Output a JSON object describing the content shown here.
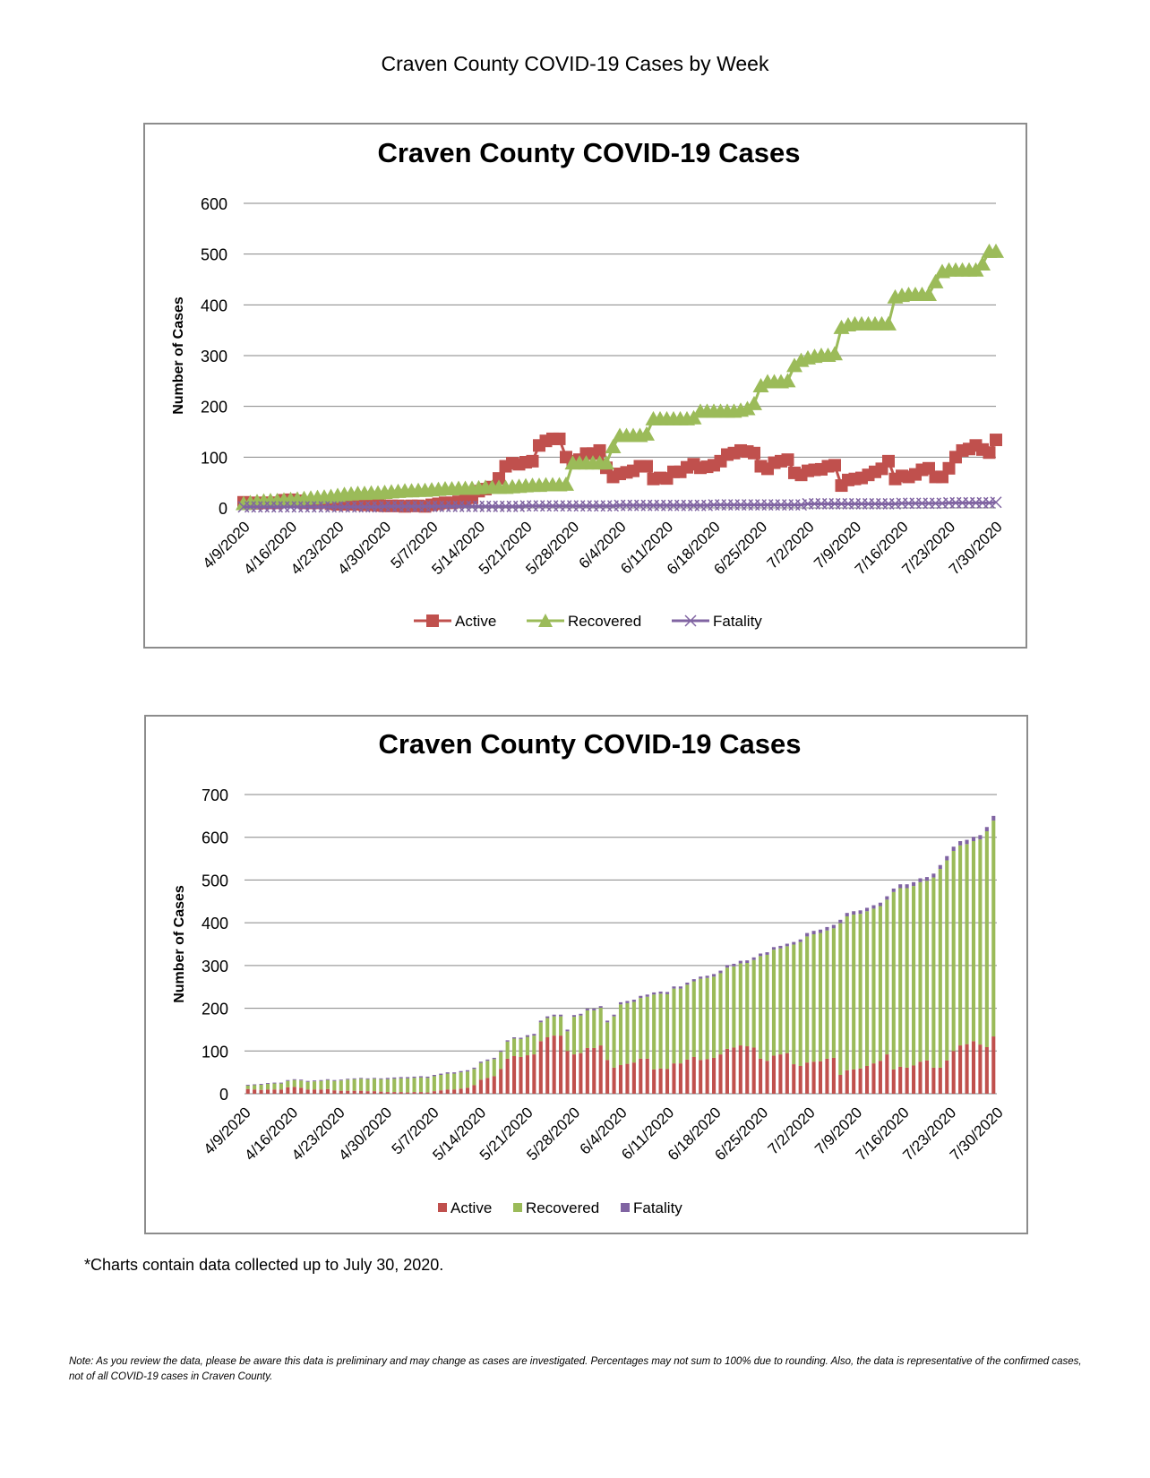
{
  "page_title": "Craven County COVID-19 Cases by Week",
  "footnote": "*Charts contain data collected up to July 30, 2020.",
  "note": "Note: As you review the data, please be aware this data is preliminary and may change as cases are investigated. Percentages may not sum to 100% due to rounding. Also, the data is representative of the confirmed cases, not of all COVID-19 cases in Craven County.",
  "colors": {
    "active": "#C0504D",
    "recovered": "#9BBB59",
    "fatality": "#8064A2"
  },
  "chart_data": [
    {
      "type": "line",
      "title": "Craven County COVID-19 Cases",
      "xlabel": "",
      "ylabel": "Number of Cases",
      "ylim": [
        0,
        600
      ],
      "yticks": [
        "0",
        "100",
        "200",
        "300",
        "400",
        "500",
        "600"
      ],
      "grid": true,
      "legend": "bottom",
      "x_start": "4/9/2020",
      "x_end": "7/30/2020",
      "x_step": "1 day",
      "xticks": [
        "4/9/2020",
        "4/16/2020",
        "4/23/2020",
        "4/30/2020",
        "5/7/2020",
        "5/14/2020",
        "5/21/2020",
        "5/28/2020",
        "6/4/2020",
        "6/11/2020",
        "6/18/2020",
        "6/25/2020",
        "7/2/2020",
        "7/9/2020",
        "7/16/2020",
        "7/23/2020",
        "7/30/2020"
      ],
      "series_ref": "shared",
      "legend_labels": [
        "Active",
        "Recovered",
        "Fatality"
      ]
    },
    {
      "type": "bar",
      "stacked": true,
      "title": "Craven County COVID-19 Cases",
      "xlabel": "",
      "ylabel": "Number of Cases",
      "ylim": [
        0,
        700
      ],
      "yticks": [
        "0",
        "100",
        "200",
        "300",
        "400",
        "500",
        "600",
        "700"
      ],
      "grid": true,
      "legend": "bottom",
      "x_start": "4/9/2020",
      "x_end": "7/30/2020",
      "x_step": "1 day",
      "xticks": [
        "4/9/2020",
        "4/16/2020",
        "4/23/2020",
        "4/30/2020",
        "5/7/2020",
        "5/14/2020",
        "5/21/2020",
        "5/28/2020",
        "6/4/2020",
        "6/11/2020",
        "6/18/2020",
        "6/25/2020",
        "7/2/2020",
        "7/9/2020",
        "7/16/2020",
        "7/23/2020",
        "7/30/2020"
      ],
      "series_ref": "shared",
      "legend_labels": [
        "Active",
        "Recovered",
        "Fatality"
      ]
    }
  ],
  "series": [
    {
      "name": "Active",
      "values": [
        11,
        10,
        9,
        10,
        10,
        10,
        15,
        16,
        14,
        10,
        10,
        10,
        11,
        8,
        7,
        7,
        7,
        7,
        6,
        6,
        5,
        4,
        4,
        4,
        3,
        4,
        4,
        3,
        6,
        8,
        10,
        10,
        12,
        14,
        20,
        33,
        37,
        41,
        58,
        82,
        88,
        86,
        90,
        92,
        123,
        132,
        136,
        136,
        100,
        92,
        95,
        107,
        107,
        113,
        79,
        61,
        67,
        70,
        73,
        82,
        82,
        57,
        59,
        58,
        71,
        71,
        80,
        86,
        79,
        81,
        84,
        92,
        105,
        108,
        113,
        111,
        108,
        82,
        77,
        89,
        92,
        95,
        69,
        65,
        73,
        75,
        76,
        82,
        84,
        44,
        55,
        57,
        59,
        65,
        71,
        77,
        92,
        57,
        63,
        61,
        66,
        75,
        78,
        61,
        61,
        78,
        100,
        113,
        116,
        123,
        115,
        109,
        134
      ]
    },
    {
      "name": "Recovered",
      "values": [
        8,
        10,
        12,
        13,
        14,
        14,
        15,
        16,
        17,
        18,
        19,
        20,
        21,
        22,
        24,
        26,
        27,
        28,
        28,
        29,
        29,
        30,
        31,
        32,
        33,
        33,
        34,
        34,
        35,
        36,
        37,
        37,
        38,
        38,
        38,
        39,
        40,
        40,
        40,
        40,
        41,
        42,
        43,
        44,
        44,
        45,
        45,
        45,
        46,
        88,
        88,
        88,
        88,
        88,
        88,
        120,
        142,
        142,
        142,
        142,
        145,
        175,
        175,
        175,
        175,
        175,
        175,
        177,
        190,
        190,
        190,
        190,
        190,
        190,
        192,
        195,
        205,
        240,
        248,
        248,
        248,
        250,
        280,
        290,
        295,
        298,
        300,
        300,
        303,
        355,
        360,
        362,
        362,
        362,
        362,
        362,
        362,
        415,
        418,
        420,
        420,
        420,
        420,
        445,
        465,
        468,
        468,
        468,
        468,
        468,
        480,
        505,
        505
      ]
    },
    {
      "name": "Fatality",
      "values": [
        2,
        2,
        2,
        2,
        2,
        2,
        2,
        2,
        2,
        2,
        2,
        2,
        2,
        2,
        2,
        2,
        2,
        2,
        2,
        2,
        2,
        3,
        3,
        3,
        3,
        3,
        3,
        3,
        3,
        3,
        3,
        3,
        3,
        3,
        3,
        3,
        3,
        3,
        3,
        3,
        3,
        3,
        4,
        4,
        4,
        4,
        4,
        4,
        4,
        4,
        4,
        4,
        4,
        4,
        4,
        4,
        5,
        5,
        5,
        5,
        5,
        5,
        5,
        5,
        5,
        5,
        5,
        5,
        5,
        5,
        6,
        6,
        6,
        6,
        6,
        6,
        6,
        6,
        6,
        6,
        6,
        6,
        6,
        6,
        8,
        8,
        8,
        8,
        8,
        8,
        8,
        8,
        8,
        8,
        8,
        8,
        8,
        8,
        9,
        9,
        9,
        9,
        9,
        9,
        9,
        10,
        10,
        10,
        10,
        10,
        10,
        10,
        11
      ]
    }
  ]
}
